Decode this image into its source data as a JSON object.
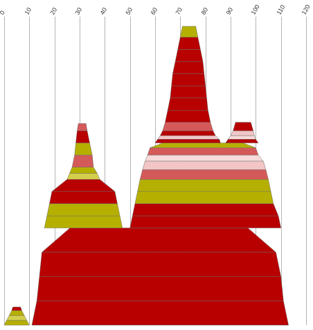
{
  "chart_data": {
    "type": "area",
    "description_free": true,
    "x_ticks": [
      0,
      10,
      20,
      30,
      40,
      50,
      60,
      70,
      80,
      90,
      100,
      110,
      120
    ],
    "xlim": [
      0,
      120
    ],
    "grid": "vertical",
    "tick_label_rotation": "-60deg",
    "colors": {
      "red": "#b80000",
      "rose": "#d45a5a",
      "pink": "#f2c6c6",
      "light_pink": "#f7dada",
      "olive": "#b5b000",
      "yellow": "#d4cf4a",
      "grid": "#b4b4b4"
    },
    "groups": [
      {
        "name": "",
        "layers": [
          {
            "x0": 0.0,
            "x1": 10.0,
            "y0": 0.0,
            "y1": 0.4,
            "color": "olive"
          },
          {
            "x0": 1.0,
            "x1": 9.0,
            "y0": 0.4,
            "y1": 0.8,
            "color": "yellow"
          },
          {
            "x0": 2.0,
            "x1": 8.0,
            "y0": 0.8,
            "y1": 1.2,
            "color": "olive"
          },
          {
            "x0": 3.0,
            "x1": 7.0,
            "y0": 1.2,
            "y1": 1.5,
            "color": "red"
          }
        ]
      },
      {
        "name": "",
        "layers": [
          {
            "x0": 11.0,
            "x1": 113.0,
            "y0": 0.0,
            "y1": 2.0,
            "color": "red"
          },
          {
            "x0": 13.0,
            "x1": 111.0,
            "y0": 2.0,
            "y1": 4.0,
            "color": "red"
          },
          {
            "x0": 14.0,
            "x1": 110.0,
            "y0": 4.0,
            "y1": 6.0,
            "color": "red"
          },
          {
            "x0": 15.0,
            "x1": 108.0,
            "y0": 6.0,
            "y1": 8.0,
            "color": "red"
          }
        ]
      },
      {
        "name": "",
        "layers": [
          {
            "x0": 16.0,
            "x1": 47.0,
            "y0": 8.0,
            "y1": 9.0,
            "color": "olive"
          },
          {
            "x0": 17.0,
            "x1": 46.0,
            "y0": 9.0,
            "y1": 10.0,
            "color": "olive"
          },
          {
            "x0": 18.0,
            "x1": 45.0,
            "y0": 10.0,
            "y1": 11.0,
            "color": "red"
          },
          {
            "x0": 19.0,
            "x1": 44.0,
            "y0": 11.0,
            "y1": 12.0,
            "color": "red"
          },
          {
            "x0": 25.0,
            "x1": 38.0,
            "y0": 12.0,
            "y1": 12.5,
            "color": "yellow"
          },
          {
            "x0": 26.0,
            "x1": 37.0,
            "y0": 12.5,
            "y1": 13.0,
            "color": "olive"
          },
          {
            "x0": 27.0,
            "x1": 35.5,
            "y0": 13.0,
            "y1": 14.0,
            "color": "rose"
          },
          {
            "x0": 28.0,
            "x1": 35.0,
            "y0": 14.0,
            "y1": 15.0,
            "color": "olive"
          },
          {
            "x0": 28.5,
            "x1": 34.0,
            "y0": 15.0,
            "y1": 16.0,
            "color": "red"
          },
          {
            "x0": 29.0,
            "x1": 33.0,
            "y0": 16.0,
            "y1": 16.6,
            "color": "rose"
          }
        ]
      },
      {
        "name": "",
        "layers": [
          {
            "x0": 50.0,
            "x1": 110.0,
            "y0": 8.0,
            "y1": 9.0,
            "color": "red"
          },
          {
            "x0": 51.0,
            "x1": 109.0,
            "y0": 9.0,
            "y1": 10.0,
            "color": "red"
          },
          {
            "x0": 52.0,
            "x1": 107.0,
            "y0": 10.0,
            "y1": 11.0,
            "color": "olive"
          },
          {
            "x0": 53.0,
            "x1": 106.0,
            "y0": 11.0,
            "y1": 12.0,
            "color": "olive"
          },
          {
            "x0": 54.0,
            "x1": 105.0,
            "y0": 12.0,
            "y1": 12.8,
            "color": "rose"
          },
          {
            "x0": 55.0,
            "x1": 104.0,
            "y0": 12.8,
            "y1": 13.5,
            "color": "pink"
          },
          {
            "x0": 56.0,
            "x1": 103.0,
            "y0": 13.5,
            "y1": 14.0,
            "color": "light_pink"
          },
          {
            "x0": 57.0,
            "x1": 101.0,
            "y0": 14.0,
            "y1": 14.6,
            "color": "rose"
          },
          {
            "x0": 58.0,
            "x1": 100.0,
            "y0": 14.6,
            "y1": 15.0,
            "color": "olive"
          }
        ]
      },
      {
        "name": "",
        "layers": [
          {
            "x0": 60.0,
            "x1": 86.0,
            "y0": 15.0,
            "y1": 15.3,
            "color": "red"
          },
          {
            "x0": 61.0,
            "x1": 85.5,
            "y0": 15.3,
            "y1": 15.6,
            "color": "pink"
          },
          {
            "x0": 62.0,
            "x1": 84.0,
            "y0": 15.6,
            "y1": 16.0,
            "color": "red"
          },
          {
            "x0": 63.0,
            "x1": 83.0,
            "y0": 16.0,
            "y1": 16.7,
            "color": "rose"
          },
          {
            "x0": 64.0,
            "x1": 82.0,
            "y0": 16.7,
            "y1": 17.7,
            "color": "red"
          },
          {
            "x0": 65.0,
            "x1": 81.0,
            "y0": 17.7,
            "y1": 18.7,
            "color": "red"
          },
          {
            "x0": 66.0,
            "x1": 80.5,
            "y0": 18.7,
            "y1": 19.7,
            "color": "red"
          },
          {
            "x0": 66.5,
            "x1": 80.0,
            "y0": 19.7,
            "y1": 20.7,
            "color": "red"
          },
          {
            "x0": 67.0,
            "x1": 79.5,
            "y0": 20.7,
            "y1": 21.7,
            "color": "red"
          },
          {
            "x0": 68.0,
            "x1": 79.0,
            "y0": 21.7,
            "y1": 22.7,
            "color": "red"
          },
          {
            "x0": 69.0,
            "x1": 78.0,
            "y0": 22.7,
            "y1": 23.7,
            "color": "red"
          },
          {
            "x0": 70.0,
            "x1": 77.0,
            "y0": 23.7,
            "y1": 24.6,
            "color": "olive"
          }
        ]
      },
      {
        "name": "",
        "layers": [
          {
            "x0": 88.0,
            "x1": 101.0,
            "y0": 15.0,
            "y1": 15.3,
            "color": "red"
          },
          {
            "x0": 89.0,
            "x1": 100.0,
            "y0": 15.3,
            "y1": 15.6,
            "color": "light_pink"
          },
          {
            "x0": 90.0,
            "x1": 99.5,
            "y0": 15.6,
            "y1": 16.0,
            "color": "pink"
          },
          {
            "x0": 91.0,
            "x1": 99.0,
            "y0": 16.0,
            "y1": 16.7,
            "color": "red"
          }
        ]
      }
    ]
  }
}
